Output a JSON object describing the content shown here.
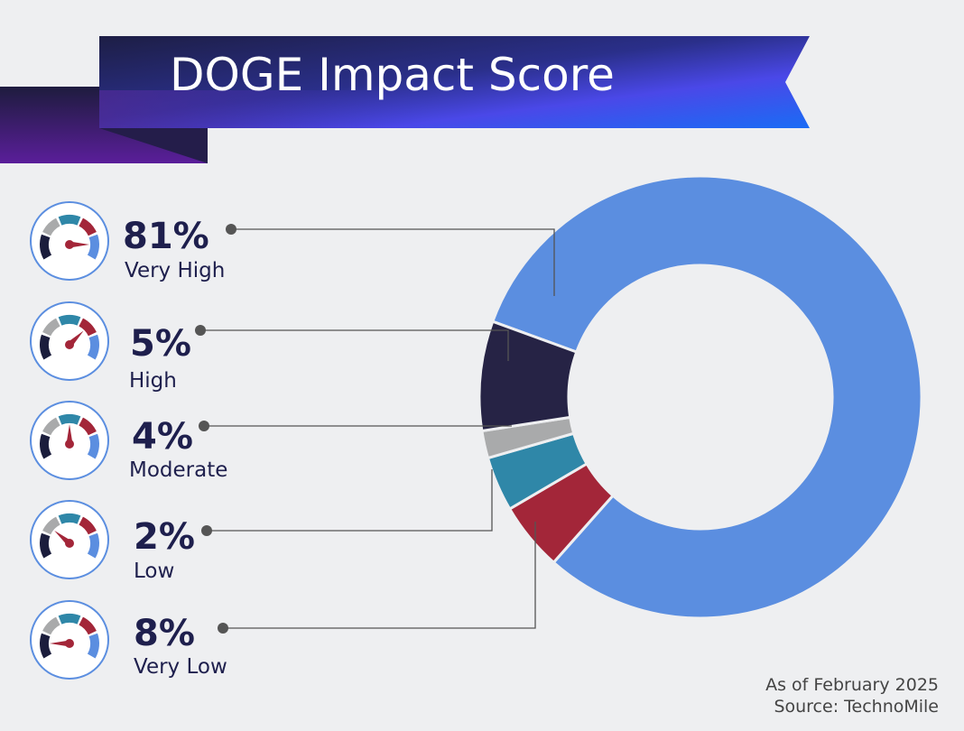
{
  "chart_data": {
    "type": "pie",
    "variant": "donut",
    "title": "DOGE Impact Score",
    "categories": [
      "Very High",
      "High",
      "Moderate",
      "Low",
      "Very Low"
    ],
    "values": [
      81,
      5,
      4,
      2,
      8
    ],
    "labels": [
      "81%",
      "5%",
      "4%",
      "2%",
      "8%"
    ],
    "colors": [
      "#5b8ee0",
      "#a32639",
      "#2f87a8",
      "#a9aaab",
      "#262345"
    ],
    "legend": "left",
    "notes": [
      "As of February 2025",
      "Source: TechnoMile"
    ]
  }
}
